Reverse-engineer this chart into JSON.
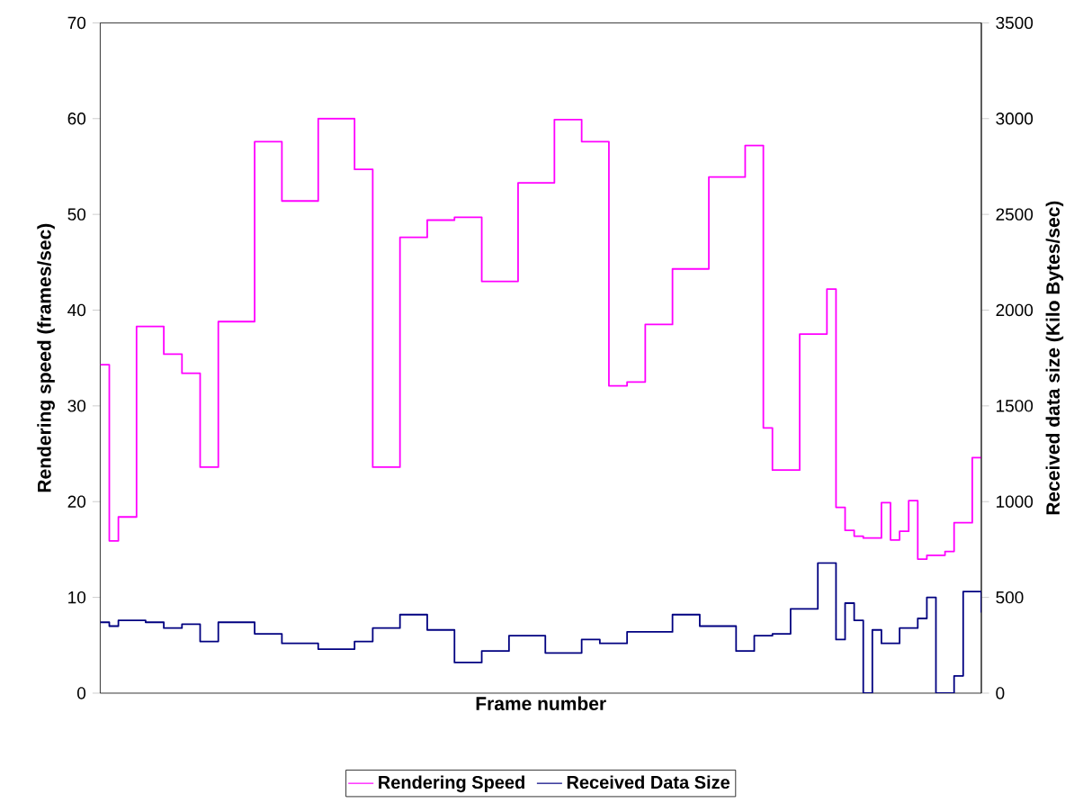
{
  "chart_data": {
    "type": "step",
    "xlabel": "Frame number",
    "ylabel": "Rendering speed (frames/sec)",
    "y2label": "Received data size (Kilo Bytes/sec)",
    "categories": [
      null,
      null,
      null,
      null,
      null,
      null,
      null,
      null,
      null,
      null,
      null,
      null,
      null,
      null,
      null,
      null,
      null,
      null,
      null,
      null,
      null,
      null,
      null,
      null,
      null,
      null,
      null,
      null,
      null,
      null,
      null,
      null,
      null,
      null,
      null,
      null,
      null,
      null,
      null,
      null,
      null,
      null,
      null,
      null,
      null,
      null,
      null,
      null,
      null,
      null,
      null,
      null,
      null,
      null,
      null,
      null,
      null,
      null,
      null,
      null,
      null,
      null,
      null,
      null,
      null,
      null,
      null,
      null,
      null,
      null,
      null,
      null,
      null,
      null,
      null,
      null,
      null,
      null,
      null,
      null,
      null,
      null,
      null,
      null,
      null,
      null,
      null,
      null,
      null,
      null,
      null,
      null,
      null,
      null,
      null,
      null,
      null,
      null
    ],
    "series": [
      {
        "name": "Rendering Speed",
        "color": "#ff00ff",
        "values": [
          34.3,
          15.9,
          18.4,
          18.4,
          38.3,
          38.3,
          38.3,
          35.4,
          35.4,
          33.4,
          33.4,
          23.6,
          23.6,
          38.8,
          38.8,
          38.8,
          38.8,
          57.6,
          57.6,
          57.6,
          51.4,
          51.4,
          51.4,
          51.4,
          60.0,
          60.0,
          60.0,
          60.0,
          54.7,
          54.7,
          23.6,
          23.6,
          23.6,
          47.6,
          47.6,
          47.6,
          49.4,
          49.4,
          49.4,
          49.7,
          49.7,
          49.7,
          43.0,
          43.0,
          43.0,
          43.0,
          53.3,
          53.3,
          53.3,
          53.3,
          59.9,
          59.9,
          59.9,
          57.6,
          57.6,
          57.6,
          32.1,
          32.1,
          32.5,
          32.5,
          38.5,
          38.5,
          38.5,
          44.3,
          44.3,
          44.3,
          44.3,
          53.9,
          53.9,
          53.9,
          53.9,
          57.2,
          57.2,
          27.7,
          23.3,
          23.3,
          23.3,
          37.5,
          37.5,
          37.5,
          42.2,
          19.4,
          17.0,
          16.4,
          16.2,
          16.2,
          19.9,
          16.0,
          16.9,
          20.1,
          14.0,
          14.4,
          14.4,
          14.8,
          17.8,
          17.8,
          24.6,
          24.6
        ]
      },
      {
        "name": "Received Data Size",
        "color": "#000080",
        "axis": "y2",
        "values": [
          370,
          350,
          380,
          380,
          380,
          370,
          370,
          340,
          340,
          360,
          360,
          270,
          270,
          370,
          370,
          370,
          370,
          310,
          310,
          310,
          260,
          260,
          260,
          260,
          230,
          230,
          230,
          230,
          270,
          270,
          340,
          340,
          340,
          410,
          410,
          410,
          330,
          330,
          330,
          160,
          160,
          160,
          220,
          220,
          220,
          300,
          300,
          300,
          300,
          210,
          210,
          210,
          210,
          280,
          280,
          260,
          260,
          260,
          320,
          320,
          320,
          320,
          320,
          410,
          410,
          410,
          350,
          350,
          350,
          350,
          220,
          220,
          300,
          300,
          310,
          310,
          440,
          440,
          440,
          680,
          680,
          280,
          470,
          380,
          0,
          330,
          260,
          260,
          340,
          340,
          390,
          500,
          0,
          0,
          90,
          530,
          530,
          420
        ]
      }
    ],
    "ylim": [
      0,
      70
    ],
    "yticks": [
      0,
      10,
      20,
      30,
      40,
      50,
      60,
      70
    ],
    "y2lim": [
      0,
      3500
    ],
    "y2ticks": [
      0,
      500,
      1000,
      1500,
      2000,
      2500,
      3000,
      3500
    ],
    "legend": "bottom"
  }
}
